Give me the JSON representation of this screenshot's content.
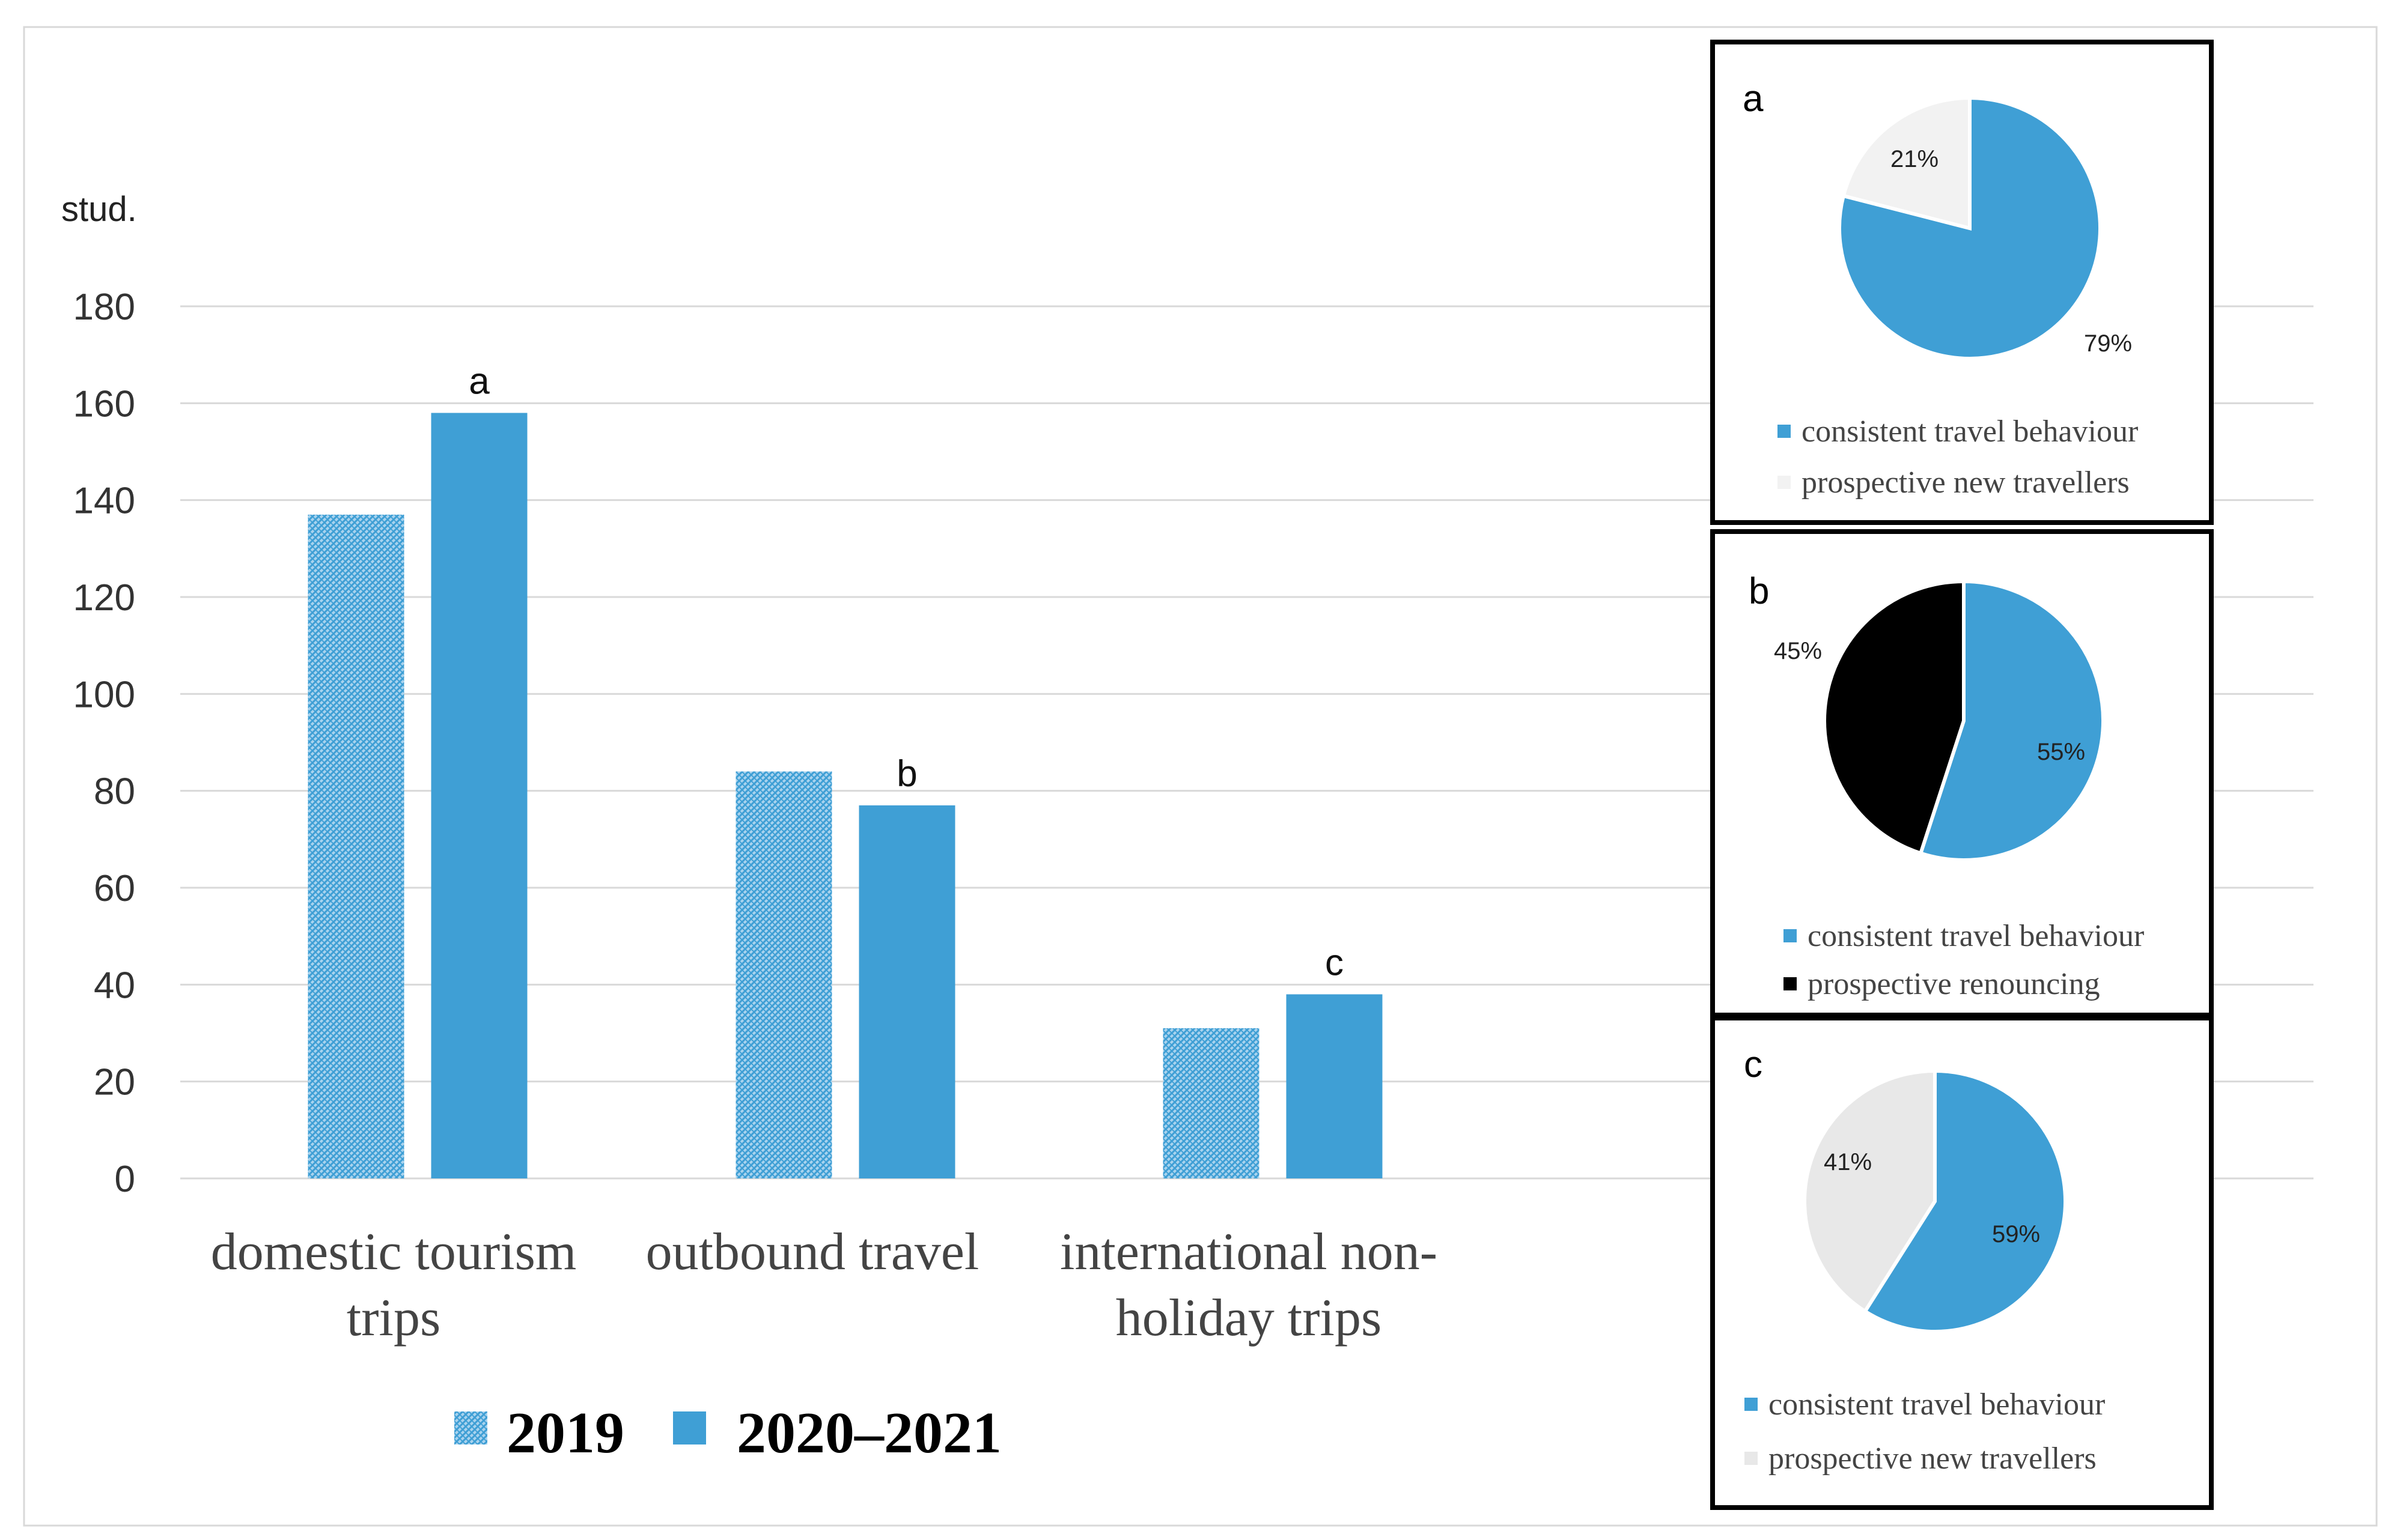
{
  "chart_data": [
    {
      "type": "bar",
      "ylabel": "stud.",
      "ylim": [
        0,
        180
      ],
      "yticks": [
        0,
        20,
        40,
        60,
        80,
        100,
        120,
        140,
        160,
        180
      ],
      "grid": true,
      "categories": [
        {
          "line1": "domestic tourism",
          "line2": "trips"
        },
        {
          "line1": "outbound travel",
          "line2": ""
        },
        {
          "line1": "international non-",
          "line2": "holiday trips"
        }
      ],
      "series": [
        {
          "name": "2019",
          "values": [
            137,
            84,
            31
          ],
          "pattern": "hatched",
          "color": "#3f9fd5"
        },
        {
          "name": "2020–2021",
          "values": [
            158,
            77,
            38
          ],
          "pattern": "solid",
          "color": "#3f9fd5"
        }
      ],
      "bar_annotations": [
        "a",
        "b",
        "c"
      ],
      "legend_position": "bottom"
    },
    {
      "type": "pie",
      "panel_label": "a",
      "slices": [
        {
          "label": "consistent travel behaviour",
          "value": 79,
          "text": "79%",
          "color": "#3f9fd5"
        },
        {
          "label": "prospective new travellers",
          "value": 21,
          "text": "21%",
          "color": "#f2f2f2"
        }
      ]
    },
    {
      "type": "pie",
      "panel_label": "b",
      "slices": [
        {
          "label": "consistent travel behaviour",
          "value": 55,
          "text": "55%",
          "color": "#3f9fd5"
        },
        {
          "label": "prospective renouncing",
          "value": 45,
          "text": "45%",
          "color": "#000000"
        }
      ]
    },
    {
      "type": "pie",
      "panel_label": "c",
      "slices": [
        {
          "label": "consistent travel behaviour",
          "value": 59,
          "text": "59%",
          "color": "#3f9fd5"
        },
        {
          "label": "prospective new travellers",
          "value": 41,
          "text": "41%",
          "color": "#e8e8e8"
        }
      ]
    }
  ]
}
